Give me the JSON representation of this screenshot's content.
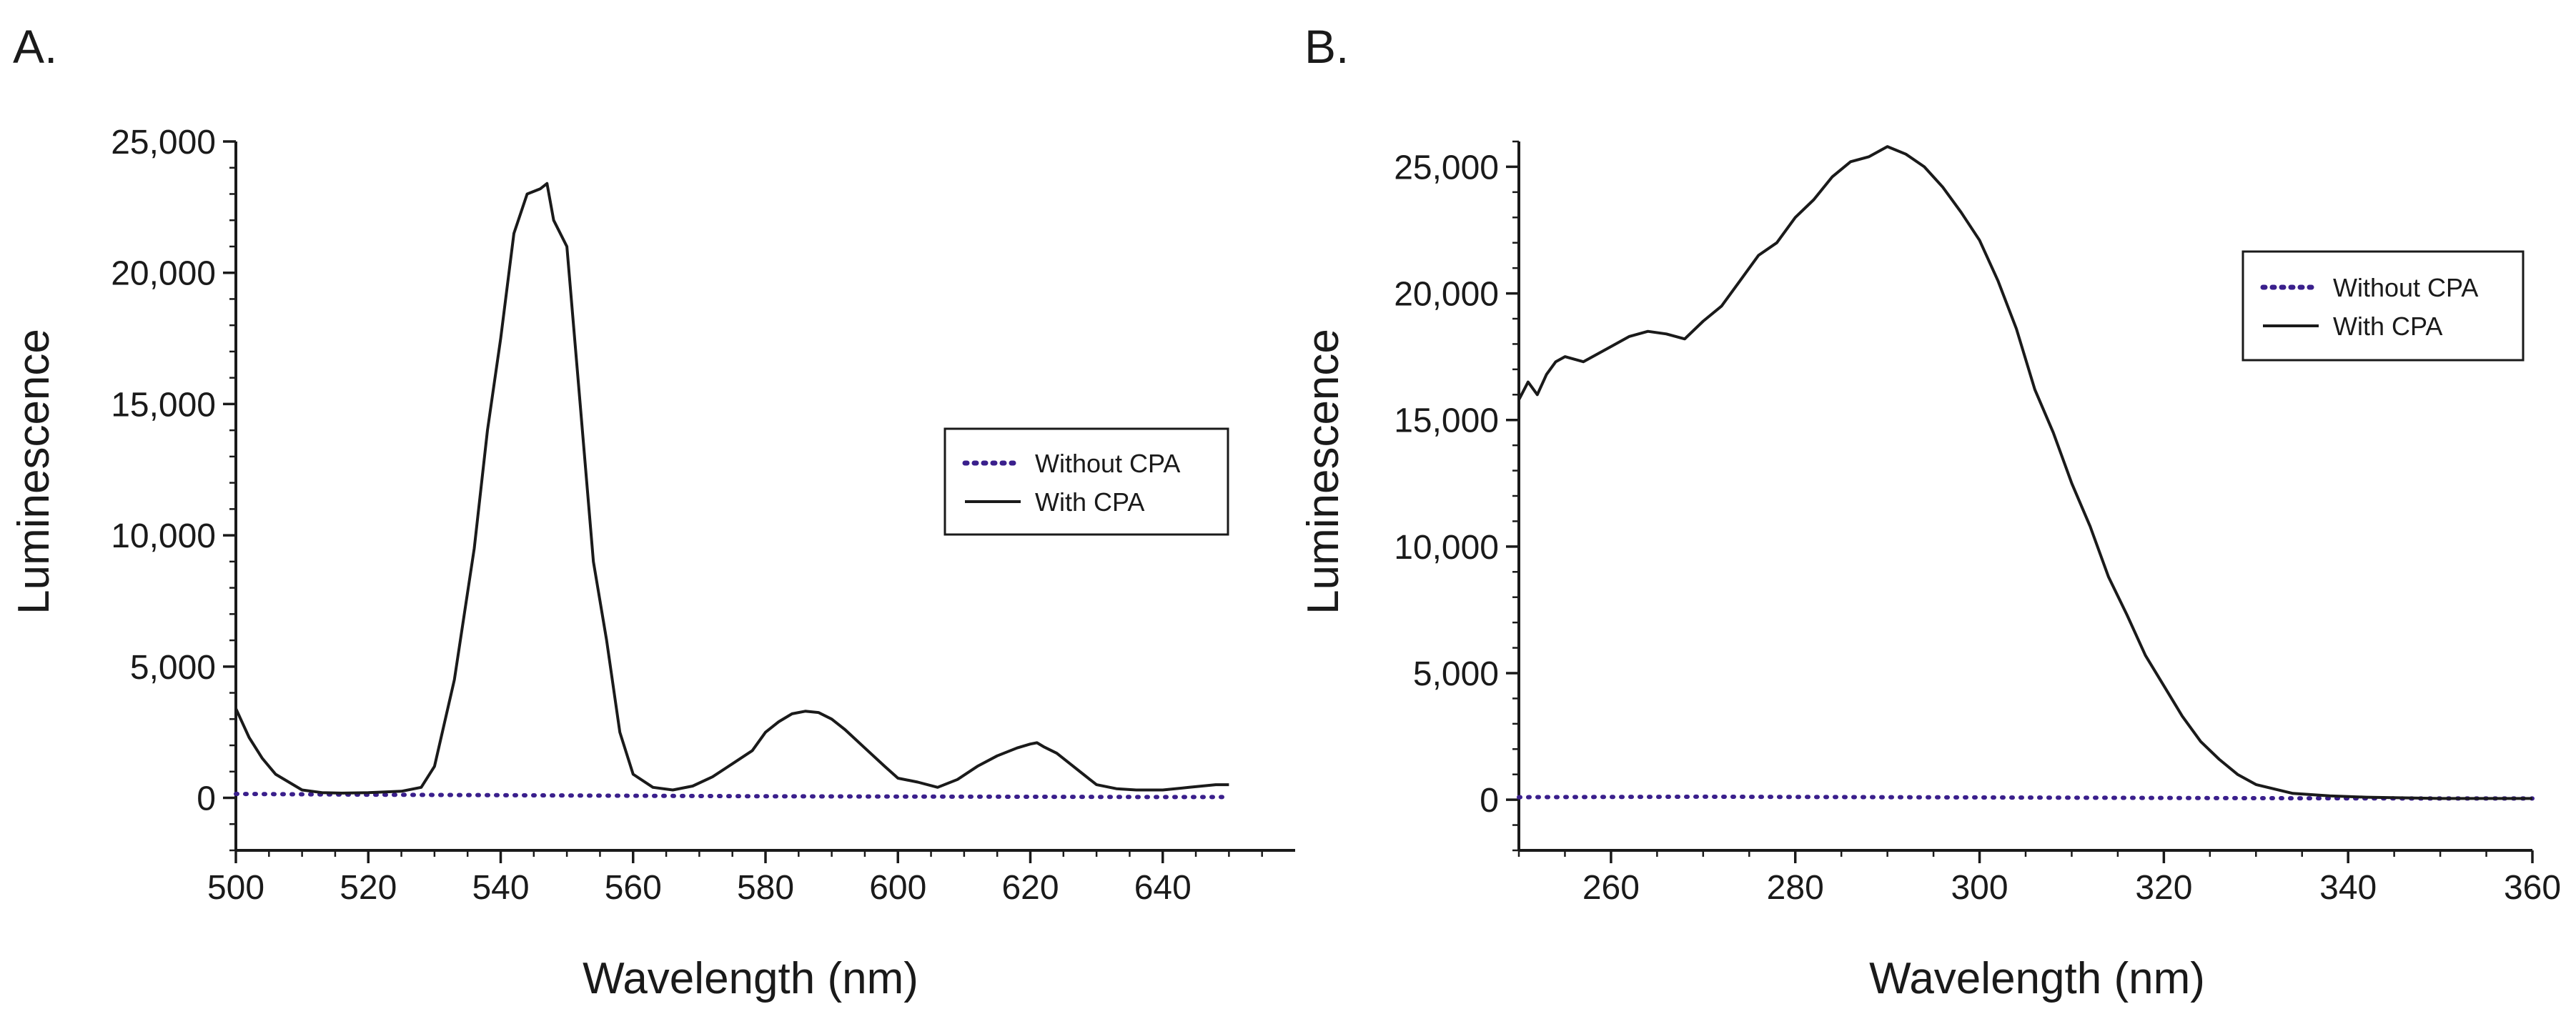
{
  "panels": [
    {
      "panel_label": "A.",
      "legend": {
        "without_label": "Without CPA",
        "with_label": "With CPA"
      },
      "xlabel": "Wavelength (nm)",
      "ylabel": "Luminescence"
    },
    {
      "panel_label": "B.",
      "legend": {
        "without_label": "Without CPA",
        "with_label": "With CPA"
      },
      "xlabel": "Wavelength (nm)",
      "ylabel": "Luminescence"
    }
  ],
  "colors": {
    "with_cpa": "#1a1a1a",
    "without_cpa": "#3a1f8c",
    "axis": "#1a1a1a"
  },
  "chart_data": [
    {
      "type": "line",
      "title": "",
      "xlabel": "Wavelength (nm)",
      "ylabel": "Luminescence",
      "xlim": [
        500,
        660
      ],
      "ylim": [
        -2000,
        25000
      ],
      "xticks": [
        500,
        520,
        540,
        560,
        580,
        600,
        620,
        640
      ],
      "yticks": [
        0,
        5000,
        10000,
        15000,
        20000,
        25000
      ],
      "ytick_labels": [
        "0",
        "5,000",
        "10,000",
        "15,000",
        "20,000",
        "25,000"
      ],
      "xtick_labels": [
        "500",
        "520",
        "540",
        "560",
        "580",
        "600",
        "620",
        "640"
      ],
      "legend_position": "center-right",
      "grid": false,
      "series": [
        {
          "name": "Without CPA",
          "style": "dotted",
          "x": [
            500,
            520,
            540,
            560,
            580,
            600,
            620,
            640,
            650
          ],
          "y": [
            150,
            120,
            100,
            80,
            60,
            50,
            40,
            30,
            30
          ]
        },
        {
          "name": "With CPA",
          "style": "solid",
          "x": [
            500,
            502,
            504,
            506,
            508,
            510,
            513,
            516,
            520,
            525,
            528,
            530,
            533,
            536,
            538,
            540,
            542,
            544,
            546,
            547,
            548,
            550,
            552,
            554,
            556,
            558,
            560,
            563,
            566,
            569,
            572,
            575,
            578,
            580,
            582,
            584,
            586,
            588,
            590,
            592,
            595,
            598,
            600,
            603,
            606,
            609,
            612,
            615,
            618,
            620,
            621,
            622,
            624,
            626,
            628,
            630,
            633,
            636,
            640,
            644,
            648,
            650
          ],
          "y": [
            3400,
            2300,
            1500,
            900,
            600,
            300,
            200,
            180,
            200,
            250,
            400,
            1200,
            4500,
            9500,
            14000,
            17500,
            21500,
            23000,
            23200,
            23400,
            22000,
            21000,
            15000,
            9000,
            6000,
            2500,
            900,
            400,
            300,
            450,
            800,
            1300,
            1800,
            2500,
            2900,
            3200,
            3300,
            3250,
            3000,
            2600,
            1900,
            1200,
            750,
            600,
            400,
            700,
            1200,
            1600,
            1900,
            2050,
            2100,
            1950,
            1700,
            1300,
            900,
            500,
            350,
            300,
            300,
            400,
            500,
            500
          ]
        }
      ]
    },
    {
      "type": "line",
      "title": "",
      "xlabel": "Wavelength (nm)",
      "ylabel": "Luminescence",
      "xlim": [
        250,
        360
      ],
      "ylim": [
        -2000,
        26000
      ],
      "xticks": [
        260,
        280,
        300,
        320,
        340,
        360
      ],
      "yticks": [
        0,
        5000,
        10000,
        15000,
        20000,
        25000
      ],
      "ytick_labels": [
        "0",
        "5,000",
        "10,000",
        "15,000",
        "20,000",
        "25,000"
      ],
      "xtick_labels": [
        "260",
        "280",
        "300",
        "320",
        "340",
        "360"
      ],
      "legend_position": "top-right",
      "grid": false,
      "series": [
        {
          "name": "Without CPA",
          "style": "dotted",
          "x": [
            250,
            270,
            290,
            310,
            330,
            350,
            360
          ],
          "y": [
            100,
            120,
            100,
            80,
            60,
            50,
            50
          ]
        },
        {
          "name": "With CPA",
          "style": "solid",
          "x": [
            250,
            251,
            252,
            253,
            254,
            255,
            257,
            260,
            262,
            264,
            266,
            268,
            270,
            272,
            274,
            276,
            278,
            280,
            282,
            284,
            286,
            288,
            290,
            292,
            294,
            296,
            298,
            300,
            302,
            304,
            306,
            308,
            310,
            312,
            314,
            316,
            318,
            320,
            322,
            324,
            326,
            328,
            330,
            334,
            338,
            342,
            350,
            360
          ],
          "y": [
            15800,
            16500,
            16000,
            16800,
            17300,
            17500,
            17300,
            17900,
            18300,
            18500,
            18400,
            18200,
            18900,
            19500,
            20500,
            21500,
            22000,
            23000,
            23700,
            24600,
            25200,
            25400,
            25800,
            25500,
            25000,
            24200,
            23200,
            22100,
            20500,
            18600,
            16200,
            14500,
            12500,
            10800,
            8800,
            7300,
            5700,
            4500,
            3300,
            2300,
            1600,
            1000,
            600,
            250,
            150,
            100,
            50,
            50
          ]
        }
      ]
    }
  ]
}
